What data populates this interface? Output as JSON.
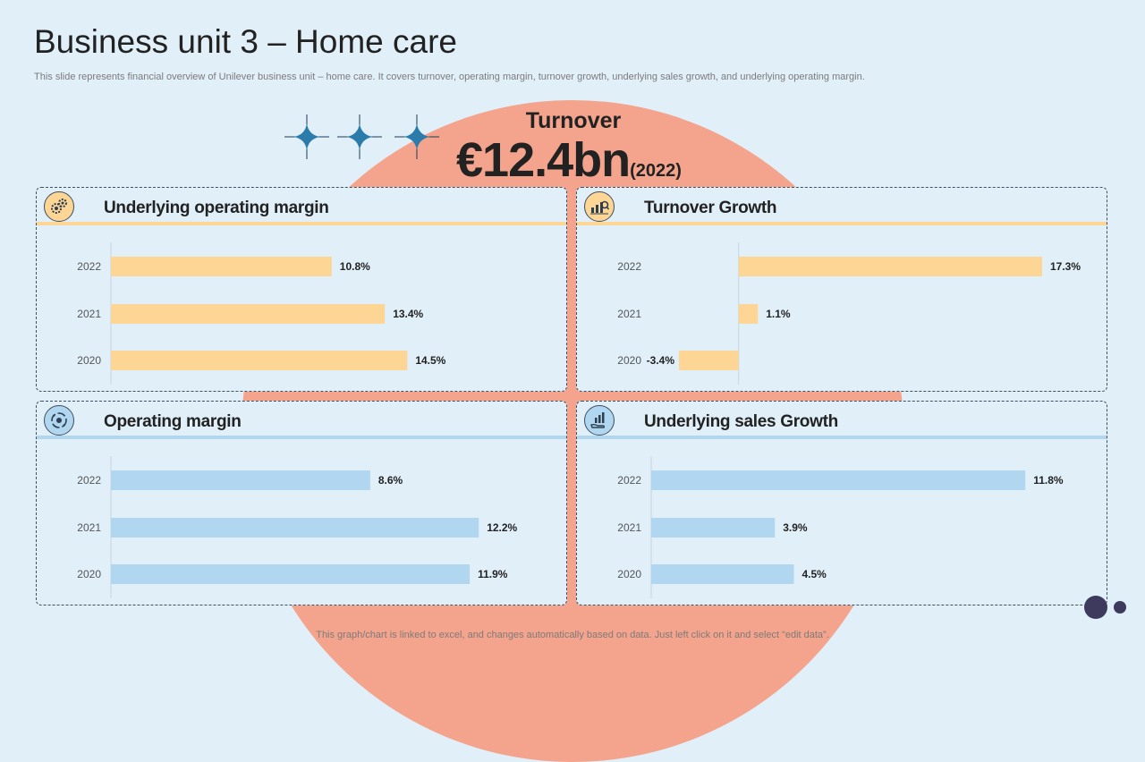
{
  "page": {
    "title": "Business unit 3 – Home care",
    "subtitle": "This slide represents financial overview of Unilever business unit – home care. It covers turnover,  operating margin, turnover growth, underlying sales growth, and underlying operating margin.",
    "footer": "This graph/chart is linked to excel,  and changes automatically based on data. Just left click on it and select “edit data”."
  },
  "turnover": {
    "label": "Turnover",
    "value": "€12.4bn",
    "year": "(2022)"
  },
  "colors": {
    "background": "#e1eff9",
    "arch": "#f4a48c",
    "orange_bar": "#fdd594",
    "blue_bar": "#b1d6ef",
    "sparkle": "#2b7bab",
    "dark_dot": "#3d3a5e"
  },
  "icons": {
    "panel1": "gears-icon",
    "panel2": "growth-chart-icon",
    "panel3": "cycle-icon",
    "panel4": "hand-chart-icon",
    "sparkles": "sparkle-icon"
  },
  "panels": [
    {
      "title": "Underlying operating margin"
    },
    {
      "title": "Turnover Growth"
    },
    {
      "title": "Operating margin"
    },
    {
      "title": "Underlying sales Growth"
    }
  ],
  "chart_data": [
    {
      "type": "bar",
      "orientation": "horizontal",
      "title": "Underlying operating margin",
      "categories": [
        "2022",
        "2021",
        "2020"
      ],
      "values": [
        10.8,
        13.4,
        14.5
      ],
      "labels": [
        "10.8%",
        "13.4%",
        "14.5%"
      ],
      "xlim": [
        0,
        20
      ],
      "unit": "%",
      "color": "#fdd594"
    },
    {
      "type": "bar",
      "orientation": "horizontal",
      "title": "Turnover Growth",
      "categories": [
        "2022",
        "2021",
        "2020"
      ],
      "values": [
        17.3,
        1.1,
        -3.4
      ],
      "labels": [
        "17.3%",
        "1.1%",
        "-3.4%"
      ],
      "xlim": [
        -3.4,
        17.3
      ],
      "unit": "%",
      "color": "#fdd594"
    },
    {
      "type": "bar",
      "orientation": "horizontal",
      "title": "Operating margin",
      "categories": [
        "2022",
        "2021",
        "2020"
      ],
      "values": [
        8.6,
        12.2,
        11.9
      ],
      "labels": [
        "8.6%",
        "12.2%",
        "11.9%"
      ],
      "xlim": [
        0,
        14.3
      ],
      "unit": "%",
      "color": "#b1d6ef"
    },
    {
      "type": "bar",
      "orientation": "horizontal",
      "title": "Underlying sales Growth",
      "categories": [
        "2022",
        "2021",
        "2020"
      ],
      "values": [
        11.8,
        3.9,
        4.5
      ],
      "labels": [
        "11.8%",
        "3.9%",
        "4.5%"
      ],
      "xlim": [
        0,
        13.6
      ],
      "unit": "%",
      "color": "#b1d6ef"
    }
  ]
}
